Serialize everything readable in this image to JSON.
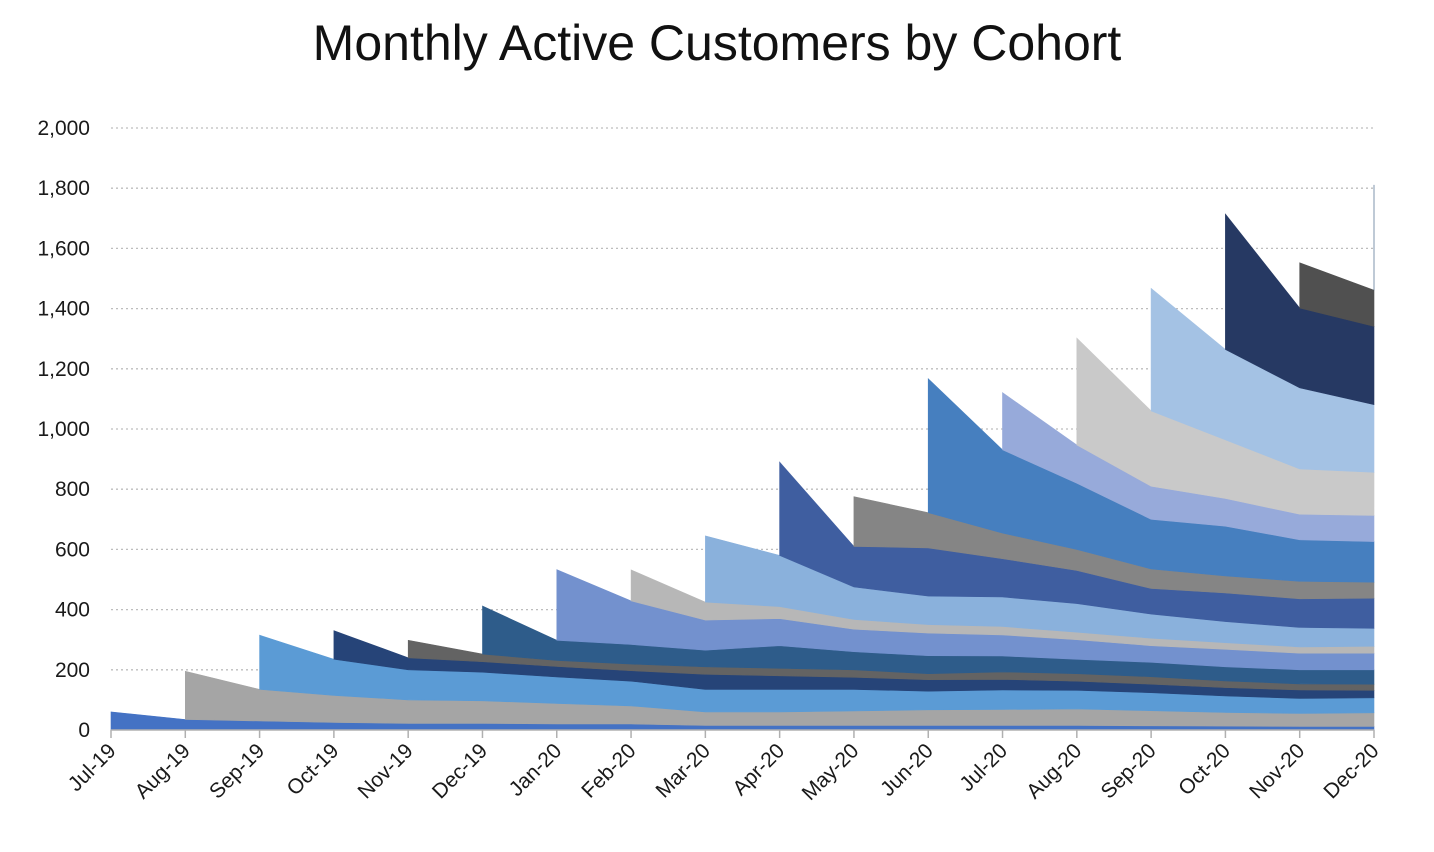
{
  "chart_data": {
    "type": "area",
    "stacked": true,
    "title": "Monthly Active Customers by Cohort",
    "xlabel": "",
    "ylabel": "",
    "ylim": [
      0,
      2000
    ],
    "yticks": [
      0,
      200,
      400,
      600,
      800,
      1000,
      1200,
      1400,
      1600,
      1800,
      2000
    ],
    "ytick_labels": [
      "0",
      "200",
      "400",
      "600",
      "800",
      "1,000",
      "1,200",
      "1,400",
      "1,600",
      "1,800",
      "2,000"
    ],
    "grid": "horizontal dotted",
    "legend": "none",
    "categories": [
      "Jul-19",
      "Aug-19",
      "Sep-19",
      "Oct-19",
      "Nov-19",
      "Dec-19",
      "Jan-20",
      "Feb-20",
      "Mar-20",
      "Apr-20",
      "May-20",
      "Jun-20",
      "Jul-20",
      "Aug-20",
      "Sep-20",
      "Oct-20",
      "Nov-20",
      "Dec-20"
    ],
    "series": [
      {
        "color": "#4472C4",
        "values": [
          60,
          35,
          30,
          25,
          22,
          22,
          20,
          20,
          15,
          15,
          15,
          15,
          15,
          15,
          14,
          13,
          12,
          12
        ]
      },
      {
        "color": "#A5A5A5",
        "values": [
          null,
          160,
          105,
          90,
          78,
          75,
          68,
          60,
          45,
          45,
          48,
          52,
          53,
          55,
          50,
          45,
          43,
          45
        ]
      },
      {
        "color": "#5B9BD5",
        "values": [
          null,
          null,
          180,
          120,
          100,
          95,
          88,
          82,
          75,
          75,
          72,
          62,
          65,
          62,
          60,
          55,
          50,
          50
        ]
      },
      {
        "color": "#264478",
        "values": [
          null,
          null,
          null,
          95,
          40,
          35,
          35,
          35,
          50,
          45,
          40,
          38,
          35,
          30,
          28,
          28,
          28,
          25
        ]
      },
      {
        "color": "#636363",
        "values": [
          null,
          null,
          null,
          null,
          58,
          25,
          20,
          22,
          25,
          25,
          25,
          20,
          25,
          25,
          25,
          22,
          20,
          20
        ]
      },
      {
        "color": "#2E5C8A",
        "values": [
          null,
          null,
          null,
          null,
          null,
          160,
          67,
          65,
          55,
          75,
          60,
          60,
          53,
          48,
          48,
          47,
          47,
          48
        ]
      },
      {
        "color": "#7391CE",
        "values": [
          null,
          null,
          null,
          null,
          null,
          null,
          235,
          145,
          100,
          90,
          75,
          75,
          70,
          65,
          55,
          58,
          55,
          55
        ]
      },
      {
        "color": "#B7B7B7",
        "values": [
          null,
          null,
          null,
          null,
          null,
          null,
          null,
          103,
          60,
          40,
          32,
          28,
          28,
          25,
          25,
          22,
          21,
          23
        ]
      },
      {
        "color": "#8AB1DC",
        "values": [
          null,
          null,
          null,
          null,
          null,
          null,
          null,
          null,
          220,
          170,
          108,
          95,
          98,
          95,
          80,
          70,
          65,
          60
        ]
      },
      {
        "color": "#3F5EA0",
        "values": [
          null,
          null,
          null,
          null,
          null,
          null,
          null,
          null,
          null,
          310,
          135,
          160,
          127,
          110,
          85,
          95,
          95,
          100
        ]
      },
      {
        "color": "#858585",
        "values": [
          null,
          null,
          null,
          null,
          null,
          null,
          null,
          null,
          null,
          null,
          165,
          117,
          85,
          70,
          65,
          57,
          58,
          53
        ]
      },
      {
        "color": "#467FBF",
        "values": [
          null,
          null,
          null,
          null,
          null,
          null,
          null,
          null,
          null,
          null,
          null,
          445,
          277,
          220,
          165,
          165,
          138,
          135
        ]
      },
      {
        "color": "#97AADA",
        "values": [
          null,
          null,
          null,
          null,
          null,
          null,
          null,
          null,
          null,
          null,
          null,
          null,
          190,
          127,
          110,
          92,
          85,
          87
        ]
      },
      {
        "color": "#C9C9C9",
        "values": [
          null,
          null,
          null,
          null,
          null,
          null,
          null,
          null,
          null,
          null,
          null,
          null,
          null,
          355,
          250,
          195,
          150,
          143
        ]
      },
      {
        "color": "#A4C2E4",
        "values": [
          null,
          null,
          null,
          null,
          null,
          null,
          null,
          null,
          null,
          null,
          null,
          null,
          null,
          null,
          407,
          300,
          270,
          225
        ]
      },
      {
        "color": "#263963",
        "values": [
          null,
          null,
          null,
          null,
          null,
          null,
          null,
          null,
          null,
          null,
          null,
          null,
          null,
          null,
          null,
          450,
          265,
          260
        ]
      },
      {
        "color": "#505050",
        "values": [
          null,
          null,
          null,
          null,
          null,
          null,
          null,
          null,
          null,
          null,
          null,
          null,
          null,
          null,
          null,
          null,
          150,
          120
        ]
      },
      {
        "color": "#2B4F77",
        "values": [
          null,
          null,
          null,
          null,
          null,
          null,
          null,
          null,
          null,
          null,
          null,
          null,
          null,
          null,
          null,
          null,
          null,
          350
        ]
      }
    ]
  }
}
